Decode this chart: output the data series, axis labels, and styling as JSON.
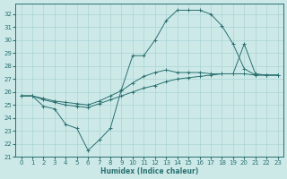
{
  "xlabel": "Humidex (Indice chaleur)",
  "xlim": [
    -0.5,
    23.5
  ],
  "ylim": [
    21,
    32.8
  ],
  "yticks": [
    21,
    22,
    23,
    24,
    25,
    26,
    27,
    28,
    29,
    30,
    31,
    32
  ],
  "xticks": [
    0,
    1,
    2,
    3,
    4,
    5,
    6,
    7,
    8,
    9,
    10,
    11,
    12,
    13,
    14,
    15,
    16,
    17,
    18,
    19,
    20,
    21,
    22,
    23
  ],
  "bg_color": "#cce9e8",
  "grid_color": "#aad4d3",
  "line_color": "#2a7070",
  "line1_x": [
    0,
    1,
    2,
    3,
    4,
    5,
    6,
    7,
    8,
    9,
    10,
    11,
    12,
    13,
    14,
    15,
    16,
    17,
    18,
    19,
    20,
    21,
    22,
    23
  ],
  "line1_y": [
    25.7,
    25.7,
    24.9,
    24.7,
    23.5,
    23.2,
    21.5,
    22.3,
    23.2,
    26.2,
    28.8,
    28.8,
    30.0,
    31.5,
    32.3,
    32.3,
    32.3,
    32.0,
    31.1,
    29.7,
    27.8,
    27.3,
    27.3,
    27.3
  ],
  "line2_x": [
    0,
    1,
    2,
    3,
    4,
    5,
    6,
    7,
    8,
    9,
    10,
    11,
    12,
    13,
    14,
    15,
    16,
    17,
    18,
    19,
    20,
    21,
    22,
    23
  ],
  "line2_y": [
    25.7,
    25.7,
    25.4,
    25.2,
    25.0,
    24.9,
    24.8,
    25.1,
    25.4,
    25.7,
    26.0,
    26.3,
    26.5,
    26.8,
    27.0,
    27.1,
    27.2,
    27.3,
    27.4,
    27.4,
    27.4,
    27.3,
    27.3,
    27.3
  ],
  "line3_x": [
    0,
    1,
    2,
    3,
    4,
    5,
    6,
    7,
    8,
    9,
    10,
    11,
    12,
    13,
    14,
    15,
    16,
    17,
    18,
    19,
    20,
    21,
    22,
    23
  ],
  "line3_y": [
    25.7,
    25.7,
    25.5,
    25.3,
    25.2,
    25.1,
    25.0,
    25.3,
    25.7,
    26.1,
    26.7,
    27.2,
    27.5,
    27.7,
    27.5,
    27.5,
    27.5,
    27.4,
    27.4,
    27.4,
    29.7,
    27.4,
    27.3,
    27.3
  ]
}
